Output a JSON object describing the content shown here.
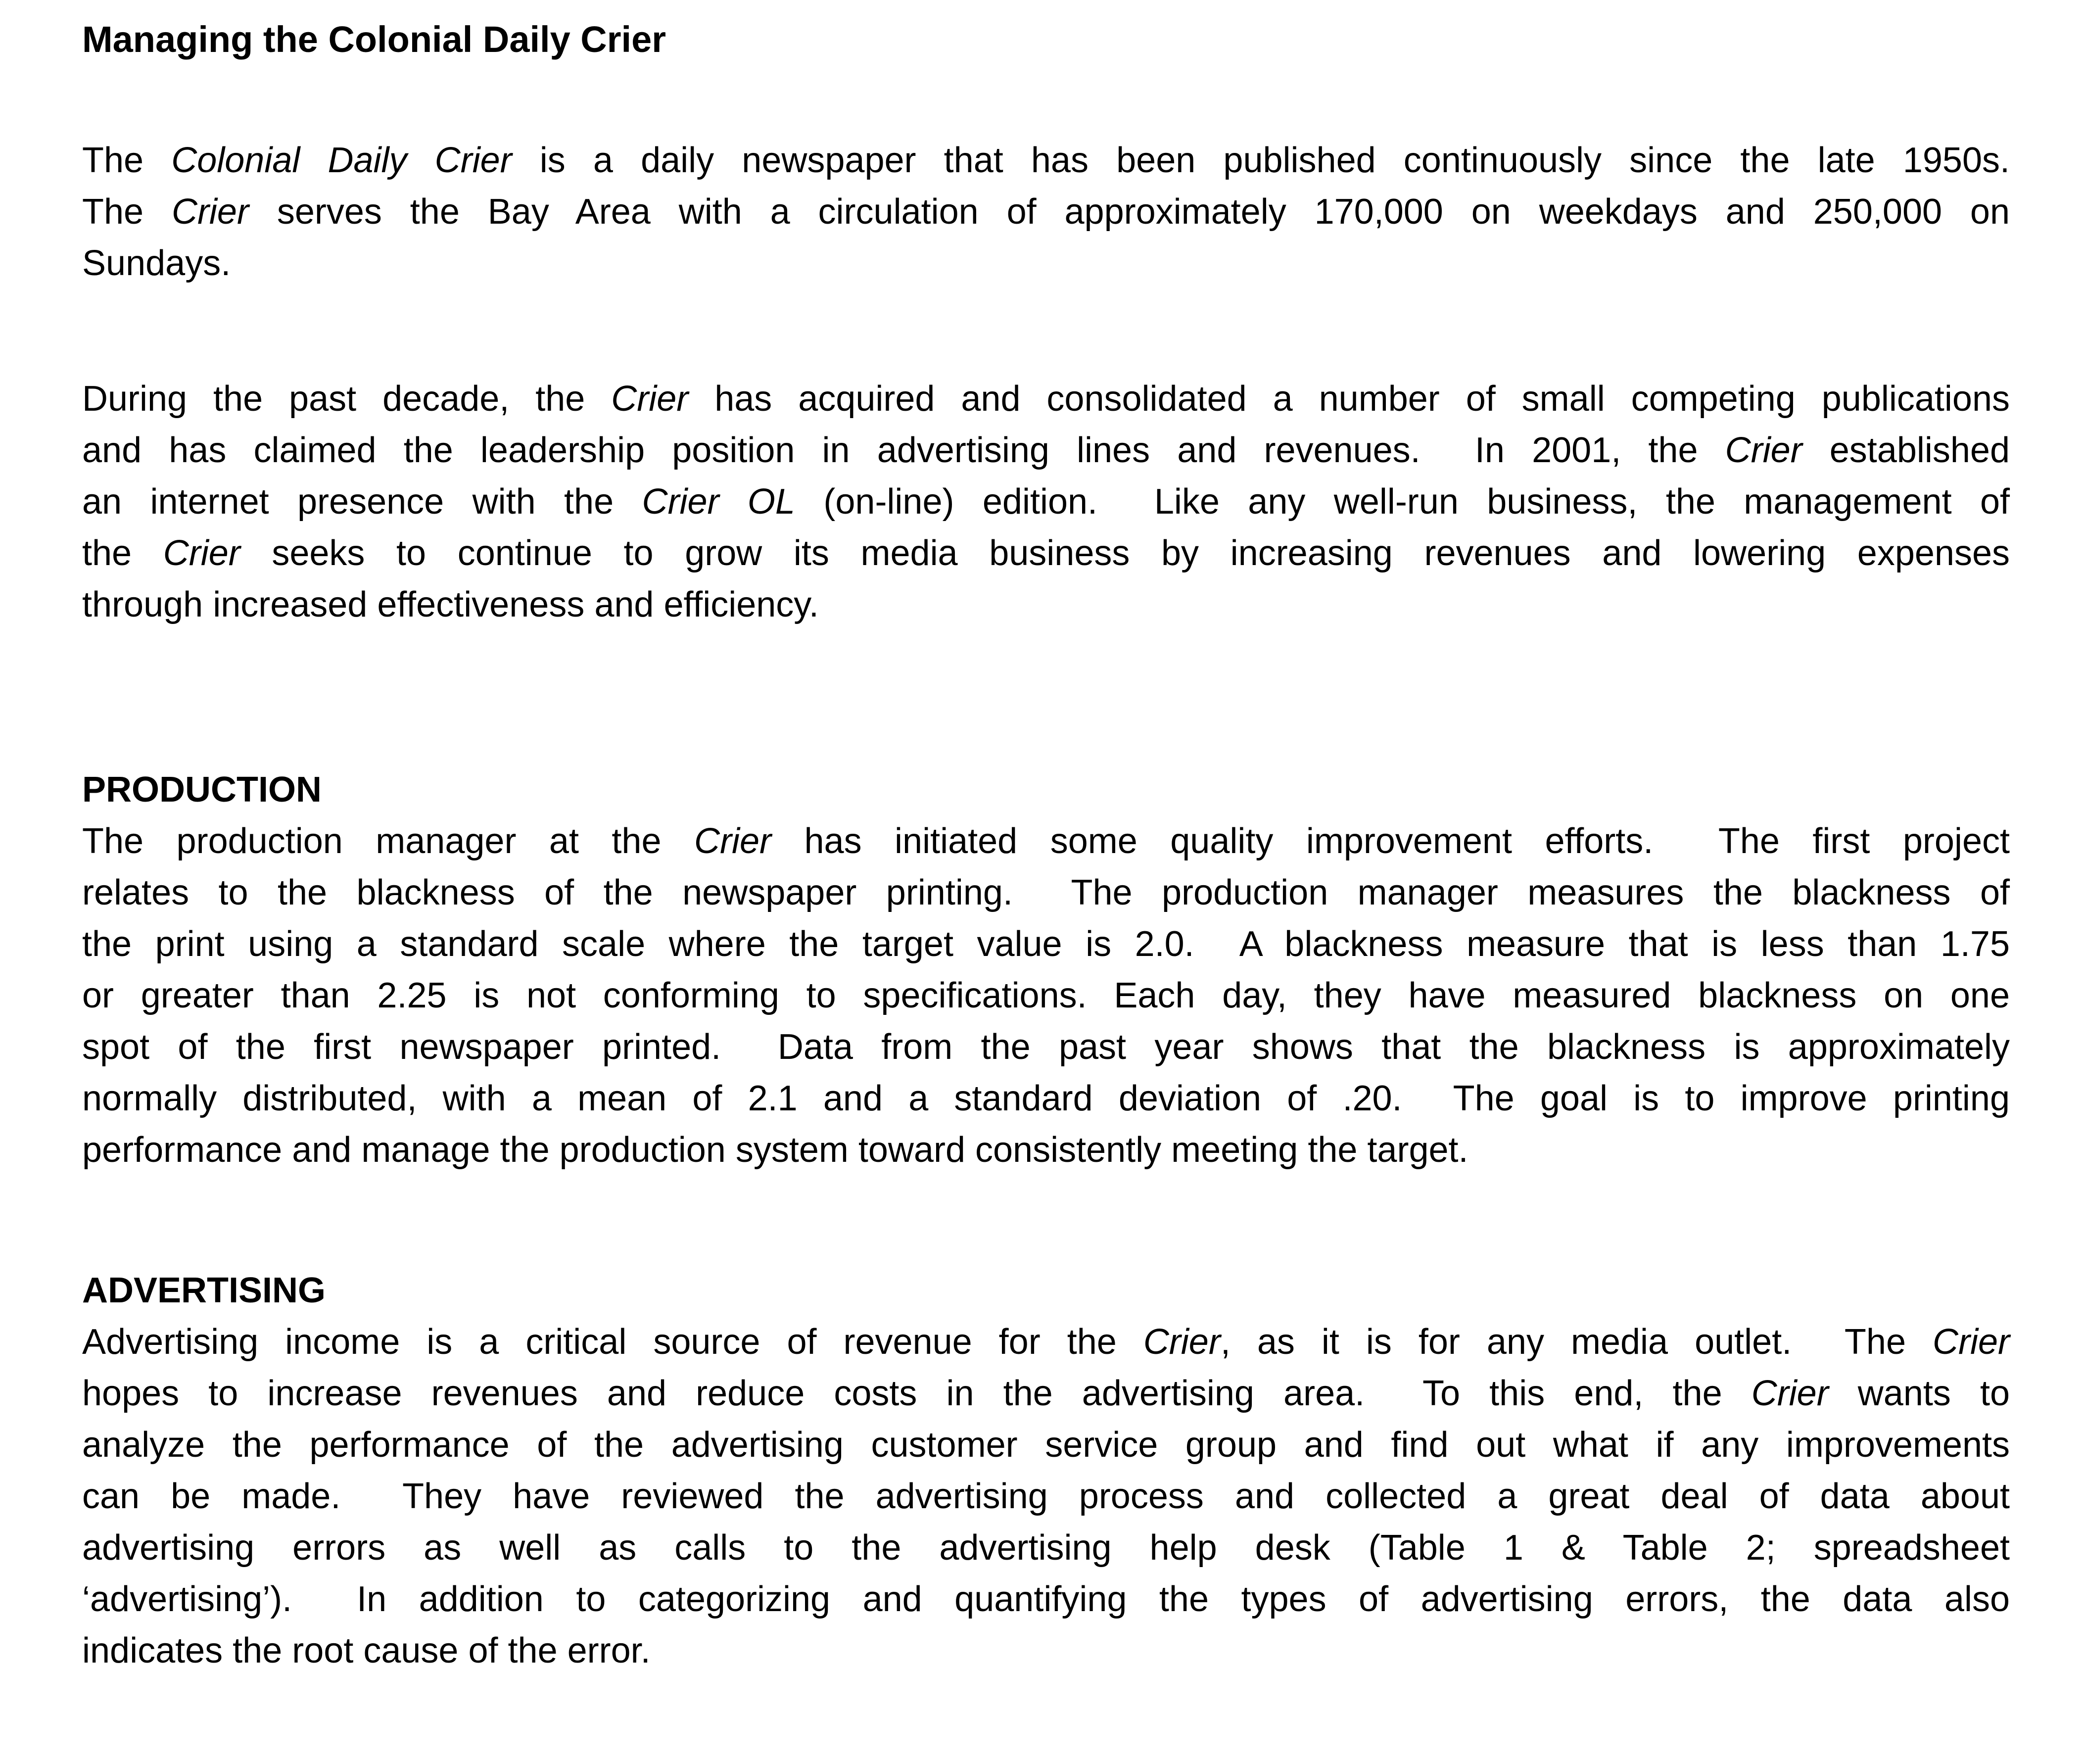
{
  "page": {
    "background_color": "#ffffff",
    "text_color": "#000000"
  },
  "document": {
    "blocks": [
      {
        "type": "title",
        "name": "document-title",
        "lines": [
          [
            {
              "t": "Managing the Colonial Daily Crier",
              "i": false
            }
          ]
        ]
      },
      {
        "type": "paragraph",
        "name": "intro-paragraph-1",
        "lines": [
          [
            {
              "t": "The ",
              "i": false
            },
            {
              "t": "Colonial Daily Crier",
              "i": true
            },
            {
              "t": " is a daily newspaper that has been published continuously since the late 1950s.",
              "i": false
            }
          ],
          [
            {
              "t": "The ",
              "i": false
            },
            {
              "t": "Crier",
              "i": true
            },
            {
              "t": " serves the Bay Area with a circulation of approximately 170,000 on weekdays and 250,000 on",
              "i": false
            }
          ],
          [
            {
              "t": "Sundays.",
              "i": false
            }
          ]
        ]
      },
      {
        "type": "paragraph",
        "name": "intro-paragraph-2",
        "lines": [
          [
            {
              "t": "During the past decade, the ",
              "i": false
            },
            {
              "t": "Crier",
              "i": true
            },
            {
              "t": " has acquired and consolidated a number of small competing publications",
              "i": false
            }
          ],
          [
            {
              "t": "and has claimed the leadership position in advertising lines and revenues.  In 2001, the ",
              "i": false
            },
            {
              "t": "Crier",
              "i": true
            },
            {
              "t": " established",
              "i": false
            }
          ],
          [
            {
              "t": "an internet presence with the ",
              "i": false
            },
            {
              "t": "Crier OL",
              "i": true
            },
            {
              "t": " (on-line) edition.  Like any well-run business, the management of",
              "i": false
            }
          ],
          [
            {
              "t": "the ",
              "i": false
            },
            {
              "t": "Crier",
              "i": true
            },
            {
              "t": " seeks to continue to grow its media business by increasing revenues and lowering expenses",
              "i": false
            }
          ],
          [
            {
              "t": "through increased effectiveness and efficiency.",
              "i": false
            }
          ]
        ]
      },
      {
        "type": "heading",
        "name": "production-heading",
        "lines": [
          [
            {
              "t": "PRODUCTION",
              "i": false
            }
          ]
        ]
      },
      {
        "type": "paragraph",
        "name": "production-paragraph",
        "lines": [
          [
            {
              "t": "The production manager at the ",
              "i": false
            },
            {
              "t": "Crier",
              "i": true
            },
            {
              "t": " has initiated some quality improvement efforts.  The first project",
              "i": false
            }
          ],
          [
            {
              "t": "relates to the blackness of the newspaper printing.  The production manager measures the blackness of",
              "i": false
            }
          ],
          [
            {
              "t": "the print using a standard scale where the target value is 2.0.  A blackness measure that is less than 1.75",
              "i": false
            }
          ],
          [
            {
              "t": "or greater than 2.25 is not conforming to specifications. Each day, they have measured blackness on one",
              "i": false
            }
          ],
          [
            {
              "t": "spot of the first newspaper printed.  Data from the past year shows that the blackness is approximately",
              "i": false
            }
          ],
          [
            {
              "t": "normally distributed, with a mean of 2.1 and a standard deviation of .20.  The goal is to improve printing",
              "i": false
            }
          ],
          [
            {
              "t": "performance and manage the production system toward consistently meeting the target.",
              "i": false
            }
          ]
        ]
      },
      {
        "type": "heading",
        "name": "advertising-heading",
        "lines": [
          [
            {
              "t": "ADVERTISING",
              "i": false
            }
          ]
        ]
      },
      {
        "type": "paragraph",
        "name": "advertising-paragraph",
        "lines": [
          [
            {
              "t": "Advertising income is a critical source of revenue for the ",
              "i": false
            },
            {
              "t": "Crier",
              "i": true
            },
            {
              "t": ", as it is for any media outlet.  The ",
              "i": false
            },
            {
              "t": "Crier",
              "i": true
            }
          ],
          [
            {
              "t": "hopes to increase revenues and reduce costs in the advertising area.  To this end, the ",
              "i": false
            },
            {
              "t": "Crier",
              "i": true
            },
            {
              "t": " wants to",
              "i": false
            }
          ],
          [
            {
              "t": "analyze the performance of the advertising customer service group and find out what if any improvements",
              "i": false
            }
          ],
          [
            {
              "t": "can be made.  They have reviewed the advertising process and collected a great deal of data about",
              "i": false
            }
          ],
          [
            {
              "t": "advertising errors as well as calls to the advertising help desk (Table 1 & Table 2; spreadsheet",
              "i": false
            }
          ],
          [
            {
              "t": "‘advertising’).  In addition to categorizing and quantifying the types of advertising errors, the data also",
              "i": false
            }
          ],
          [
            {
              "t": "indicates the root cause of the error.",
              "i": false
            }
          ]
        ]
      }
    ]
  }
}
